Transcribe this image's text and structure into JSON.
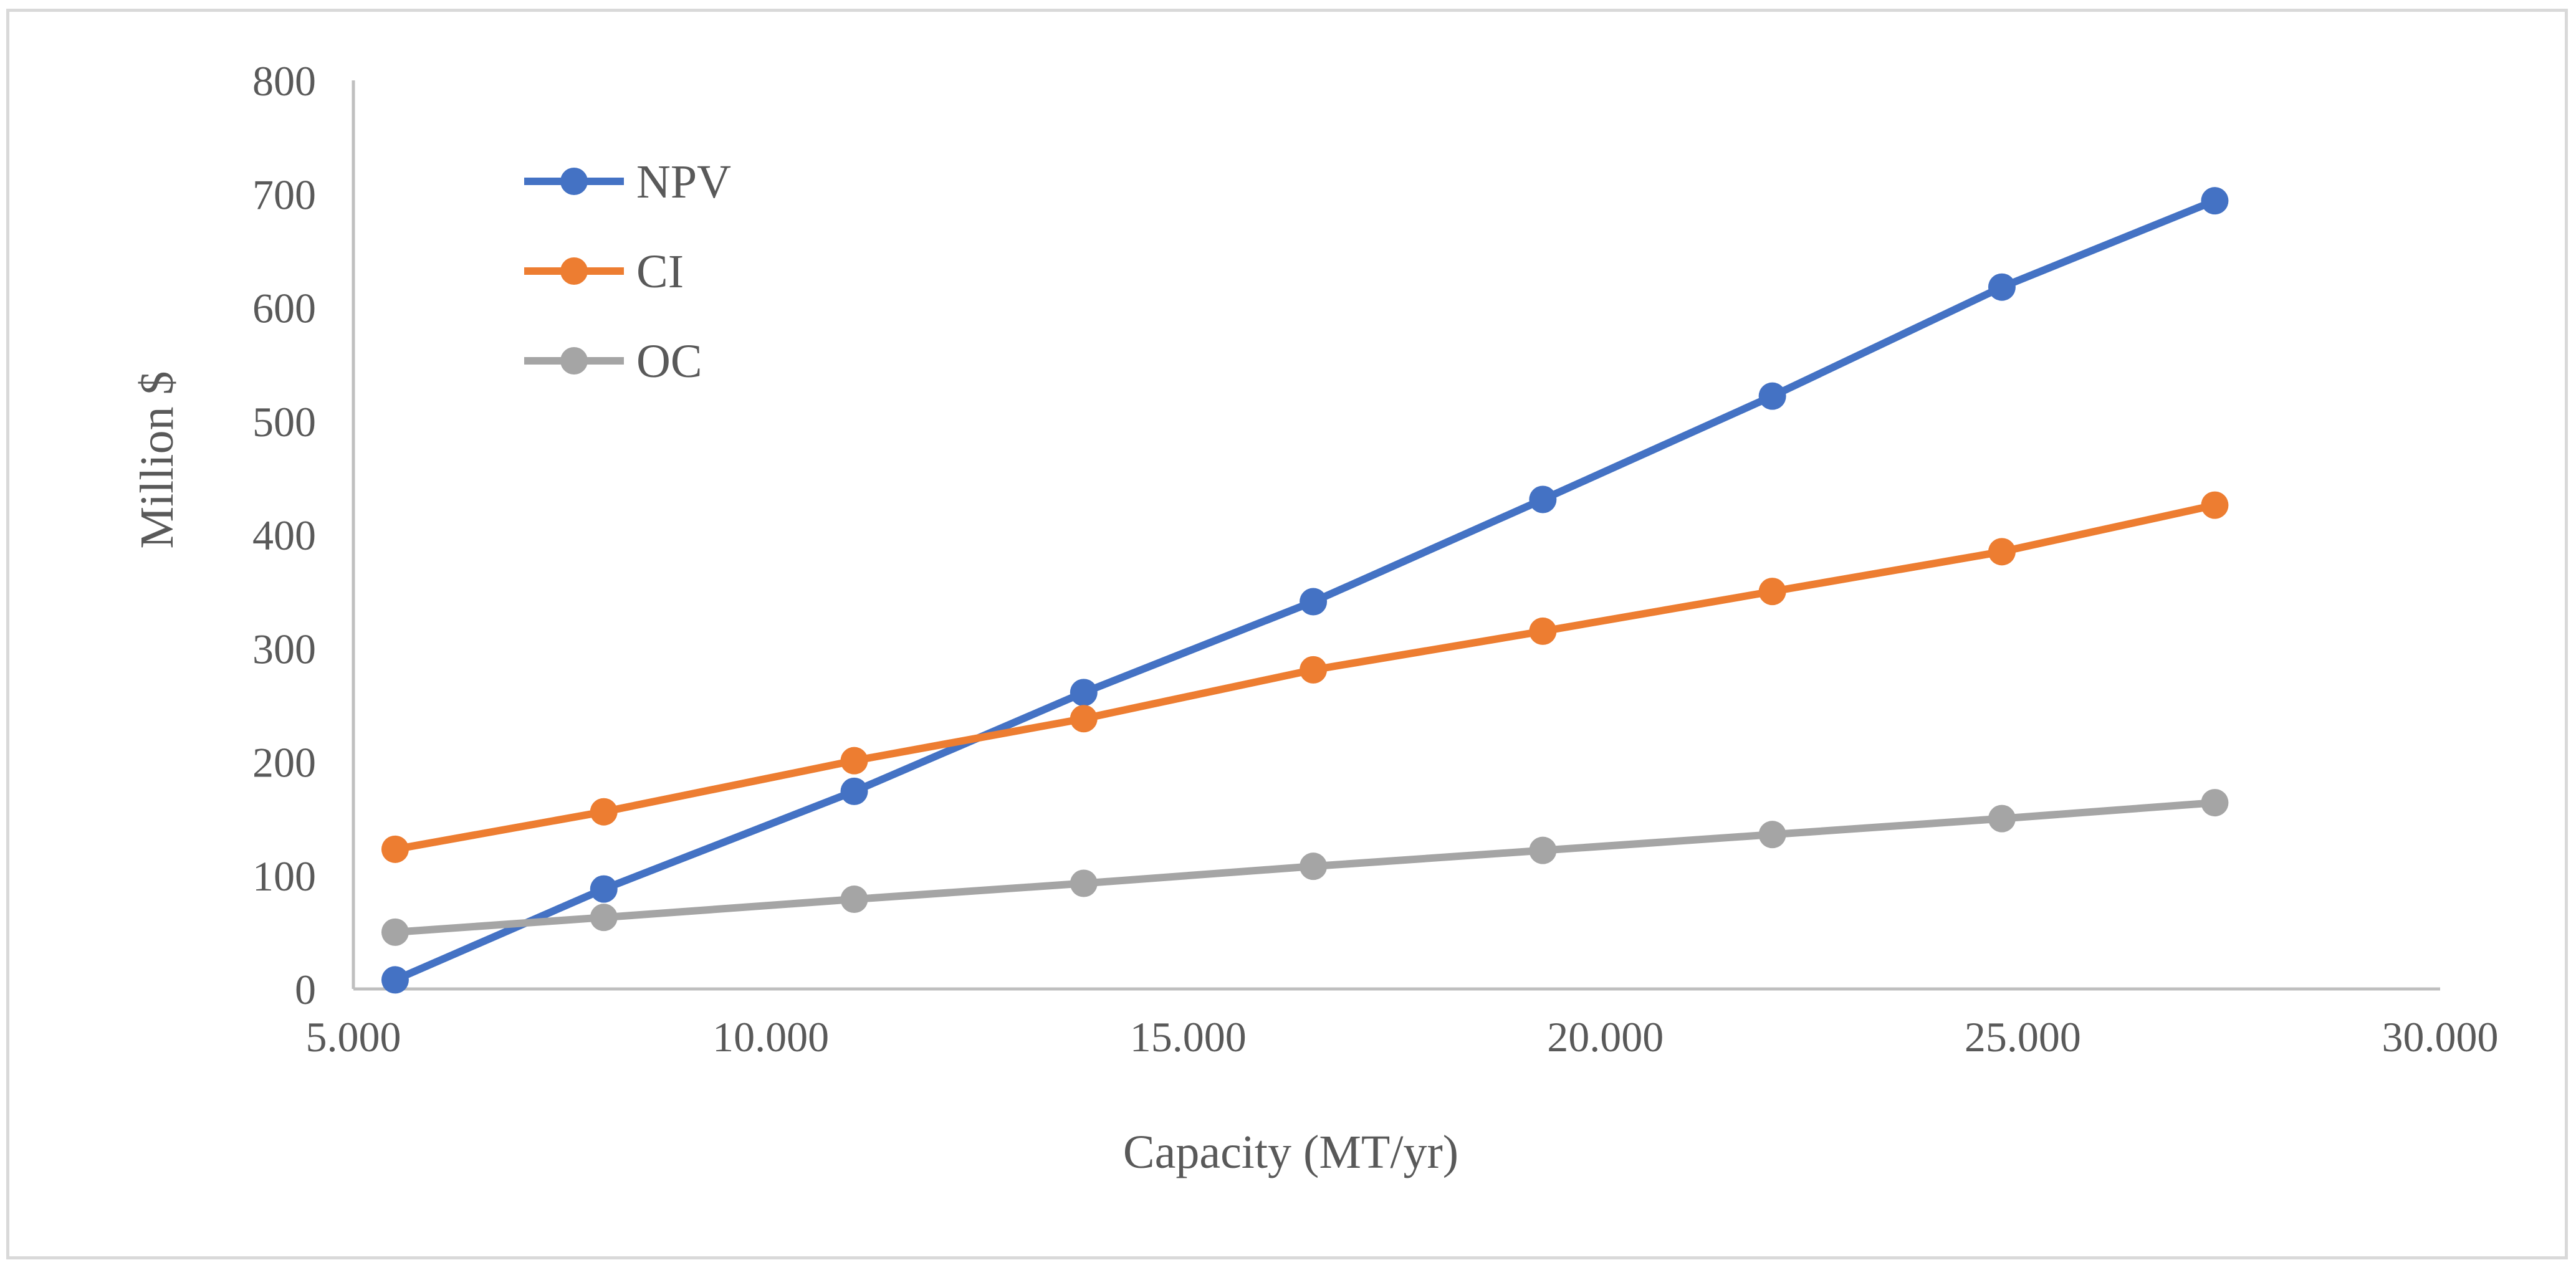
{
  "chart_data": {
    "type": "line",
    "title": "",
    "xlabel": "Capacity (MT/yr)",
    "ylabel": "Million $",
    "xlim": [
      5000,
      30000
    ],
    "ylim": [
      0,
      800
    ],
    "x_ticks": [
      5000,
      10000,
      15000,
      20000,
      25000,
      30000
    ],
    "x_tick_labels": [
      "5.000",
      "10.000",
      "15.000",
      "20.000",
      "25.000",
      "30.000"
    ],
    "y_ticks": [
      0,
      100,
      200,
      300,
      400,
      500,
      600,
      700,
      800
    ],
    "y_tick_labels": [
      "0",
      "100",
      "200",
      "300",
      "400",
      "500",
      "600",
      "700",
      "800"
    ],
    "grid": false,
    "legend_position": "top-left",
    "x": [
      5500,
      8000,
      11000,
      13750,
      16500,
      19250,
      22000,
      24750,
      27300
    ],
    "series": [
      {
        "name": "NPV",
        "color": "#4472c4",
        "values": [
          8,
          88,
          174,
          261,
          341,
          431,
          522,
          618,
          694
        ]
      },
      {
        "name": "CI",
        "color": "#ed7d31",
        "values": [
          123,
          156,
          201,
          238,
          281,
          315,
          350,
          385,
          426
        ]
      },
      {
        "name": "OC",
        "color": "#a5a5a5",
        "values": [
          50,
          63,
          79,
          93,
          108,
          122,
          136,
          150,
          164
        ]
      }
    ]
  }
}
